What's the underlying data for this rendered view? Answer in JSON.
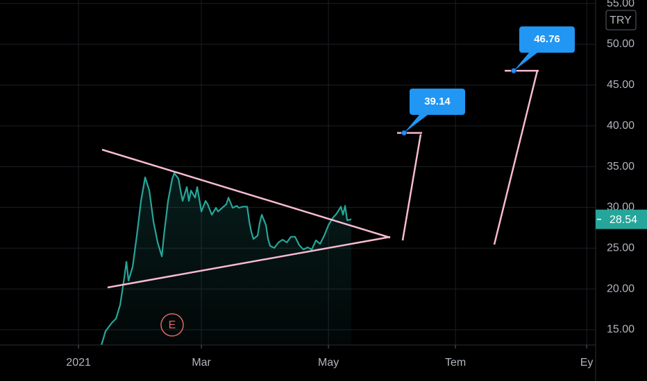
{
  "chart_data": {
    "type": "line",
    "currency": "TRY",
    "earnings_marker": "E",
    "price_label": 28.54,
    "x": [
      11,
      13,
      16,
      18,
      20,
      22,
      23,
      24,
      26,
      28,
      30,
      32,
      34,
      36,
      38,
      40,
      41,
      43,
      45,
      46,
      48,
      49,
      50,
      52,
      53,
      54,
      56,
      57,
      59,
      61,
      62,
      64,
      66,
      67,
      69,
      71,
      72,
      74,
      76,
      77,
      79,
      81,
      82,
      83,
      84,
      86,
      87,
      88,
      90,
      91,
      92,
      94,
      96,
      98,
      100,
      102,
      104,
      106,
      108,
      110,
      112,
      114,
      116,
      118,
      120,
      122,
      124,
      126,
      127,
      128,
      129,
      131
    ],
    "series": [
      {
        "color": "#26a69a",
        "values": [
          13.13,
          14.83,
          15.85,
          16.36,
          18.06,
          21.46,
          23.33,
          21.03,
          22.73,
          26.55,
          30.8,
          33.69,
          32.07,
          28.25,
          25.7,
          24.0,
          26.55,
          30.8,
          33.52,
          34.2,
          33.52,
          32.07,
          30.8,
          32.5,
          30.8,
          32.07,
          31.2,
          32.5,
          29.5,
          30.8,
          30.4,
          29.1,
          29.95,
          29.5,
          29.95,
          30.4,
          31.2,
          29.95,
          30.2,
          29.95,
          30.1,
          30.1,
          28.25,
          26.98,
          26.13,
          26.55,
          28.1,
          29.1,
          27.83,
          26.13,
          25.28,
          25.03,
          25.7,
          26.04,
          25.7,
          26.4,
          26.4,
          25.36,
          24.85,
          25.1,
          24.85,
          25.96,
          25.53,
          26.55,
          27.83,
          28.67,
          29.27,
          30.1,
          29.1,
          30.2,
          28.42,
          28.54
        ]
      }
    ],
    "annotations": [
      {
        "value": 39.14,
        "label": "39.14"
      },
      {
        "value": 46.76,
        "label": "46.76"
      }
    ],
    "xlim": [
      -37.7,
      248.3
    ],
    "xticks": [
      {
        "value": 0,
        "label": "2021"
      },
      {
        "value": 59,
        "label": "Mar"
      },
      {
        "value": 120,
        "label": "May"
      },
      {
        "value": 181,
        "label": "Tem"
      },
      {
        "value": 244,
        "label": "Ey"
      }
    ],
    "ylim": [
      13.13,
      55.44
    ],
    "yticks": [
      {
        "value": 15,
        "label": "15.00"
      },
      {
        "value": 20,
        "label": "20.00"
      },
      {
        "value": 25,
        "label": "25.00"
      },
      {
        "value": 30,
        "label": "30.00"
      },
      {
        "value": 35,
        "label": "35.00"
      },
      {
        "value": 40,
        "label": "40.00"
      },
      {
        "value": 45,
        "label": "45.00"
      },
      {
        "value": 50,
        "label": "50.00"
      },
      {
        "value": 55,
        "label": "55.00"
      }
    ],
    "grid": true
  }
}
